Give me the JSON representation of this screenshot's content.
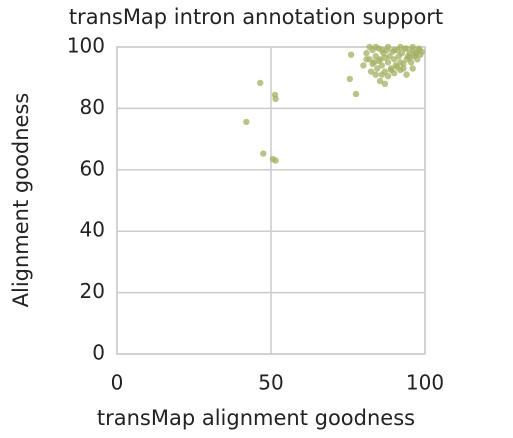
{
  "chart_data": {
    "type": "scatter",
    "title": "transMap intron annotation support",
    "x_label": "transMap alignment goodness",
    "y_label": "Alignment goodness",
    "color": "#a3b062",
    "grid": true,
    "xlim": [
      0,
      100
    ],
    "xticks": [
      0,
      50,
      100
    ],
    "ylim": [
      0,
      100
    ],
    "yticks": [
      0,
      20,
      40,
      60,
      80,
      100
    ],
    "x": [
      42,
      46.5,
      47.5,
      51.3,
      51.5,
      50.6,
      51.5,
      76,
      75.6,
      77.6,
      94,
      85.4,
      87,
      80,
      81,
      82,
      82.5,
      83,
      83.5,
      84,
      84.5,
      85,
      85.5,
      86,
      86.5,
      87,
      87.5,
      88,
      88.5,
      89,
      89.5,
      90,
      90.5,
      91,
      91.5,
      92,
      92.5,
      93,
      93.5,
      94,
      94.5,
      95,
      95.5,
      96,
      96.5,
      97,
      97.5,
      98,
      98.5,
      99,
      82,
      84,
      86,
      88,
      90,
      92,
      94,
      96,
      98,
      83,
      85,
      87,
      89,
      91,
      93,
      95,
      97,
      81,
      88,
      90,
      92,
      96,
      84,
      86
    ],
    "values": [
      75.6,
      88.3,
      65.3,
      84.4,
      83.1,
      63.5,
      63,
      97.5,
      89.6,
      84.7,
      91,
      88.9,
      88,
      94,
      98,
      96,
      92,
      99,
      95,
      97,
      93,
      99.5,
      96,
      94,
      98,
      92,
      99,
      95,
      97,
      93,
      98.5,
      96,
      94,
      99,
      97,
      95,
      98,
      93,
      99.5,
      96,
      97,
      98,
      95,
      99,
      97,
      98,
      96,
      99,
      97.5,
      98.5,
      100,
      100,
      99,
      100,
      99,
      100,
      99.5,
      100,
      99.5,
      94.5,
      95.5,
      96.5,
      92.5,
      93.5,
      94.5,
      96.5,
      97.5,
      96,
      90.5,
      91.5,
      92.5,
      93,
      91,
      91
    ]
  }
}
